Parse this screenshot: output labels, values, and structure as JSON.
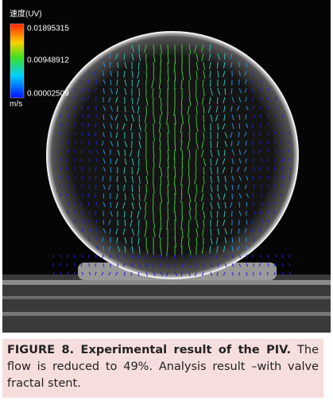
{
  "figure": {
    "colorbar": {
      "title": "速度(UV)",
      "labels": [
        "0.01895315",
        "0.00948912",
        "0.00002509"
      ],
      "unit": "m/s"
    }
  },
  "caption": {
    "label": "FIGURE 8. Experimental result of the PIV.",
    "text": "The flow is reduced to 49%. Analysis result –with valve fractal stent."
  }
}
